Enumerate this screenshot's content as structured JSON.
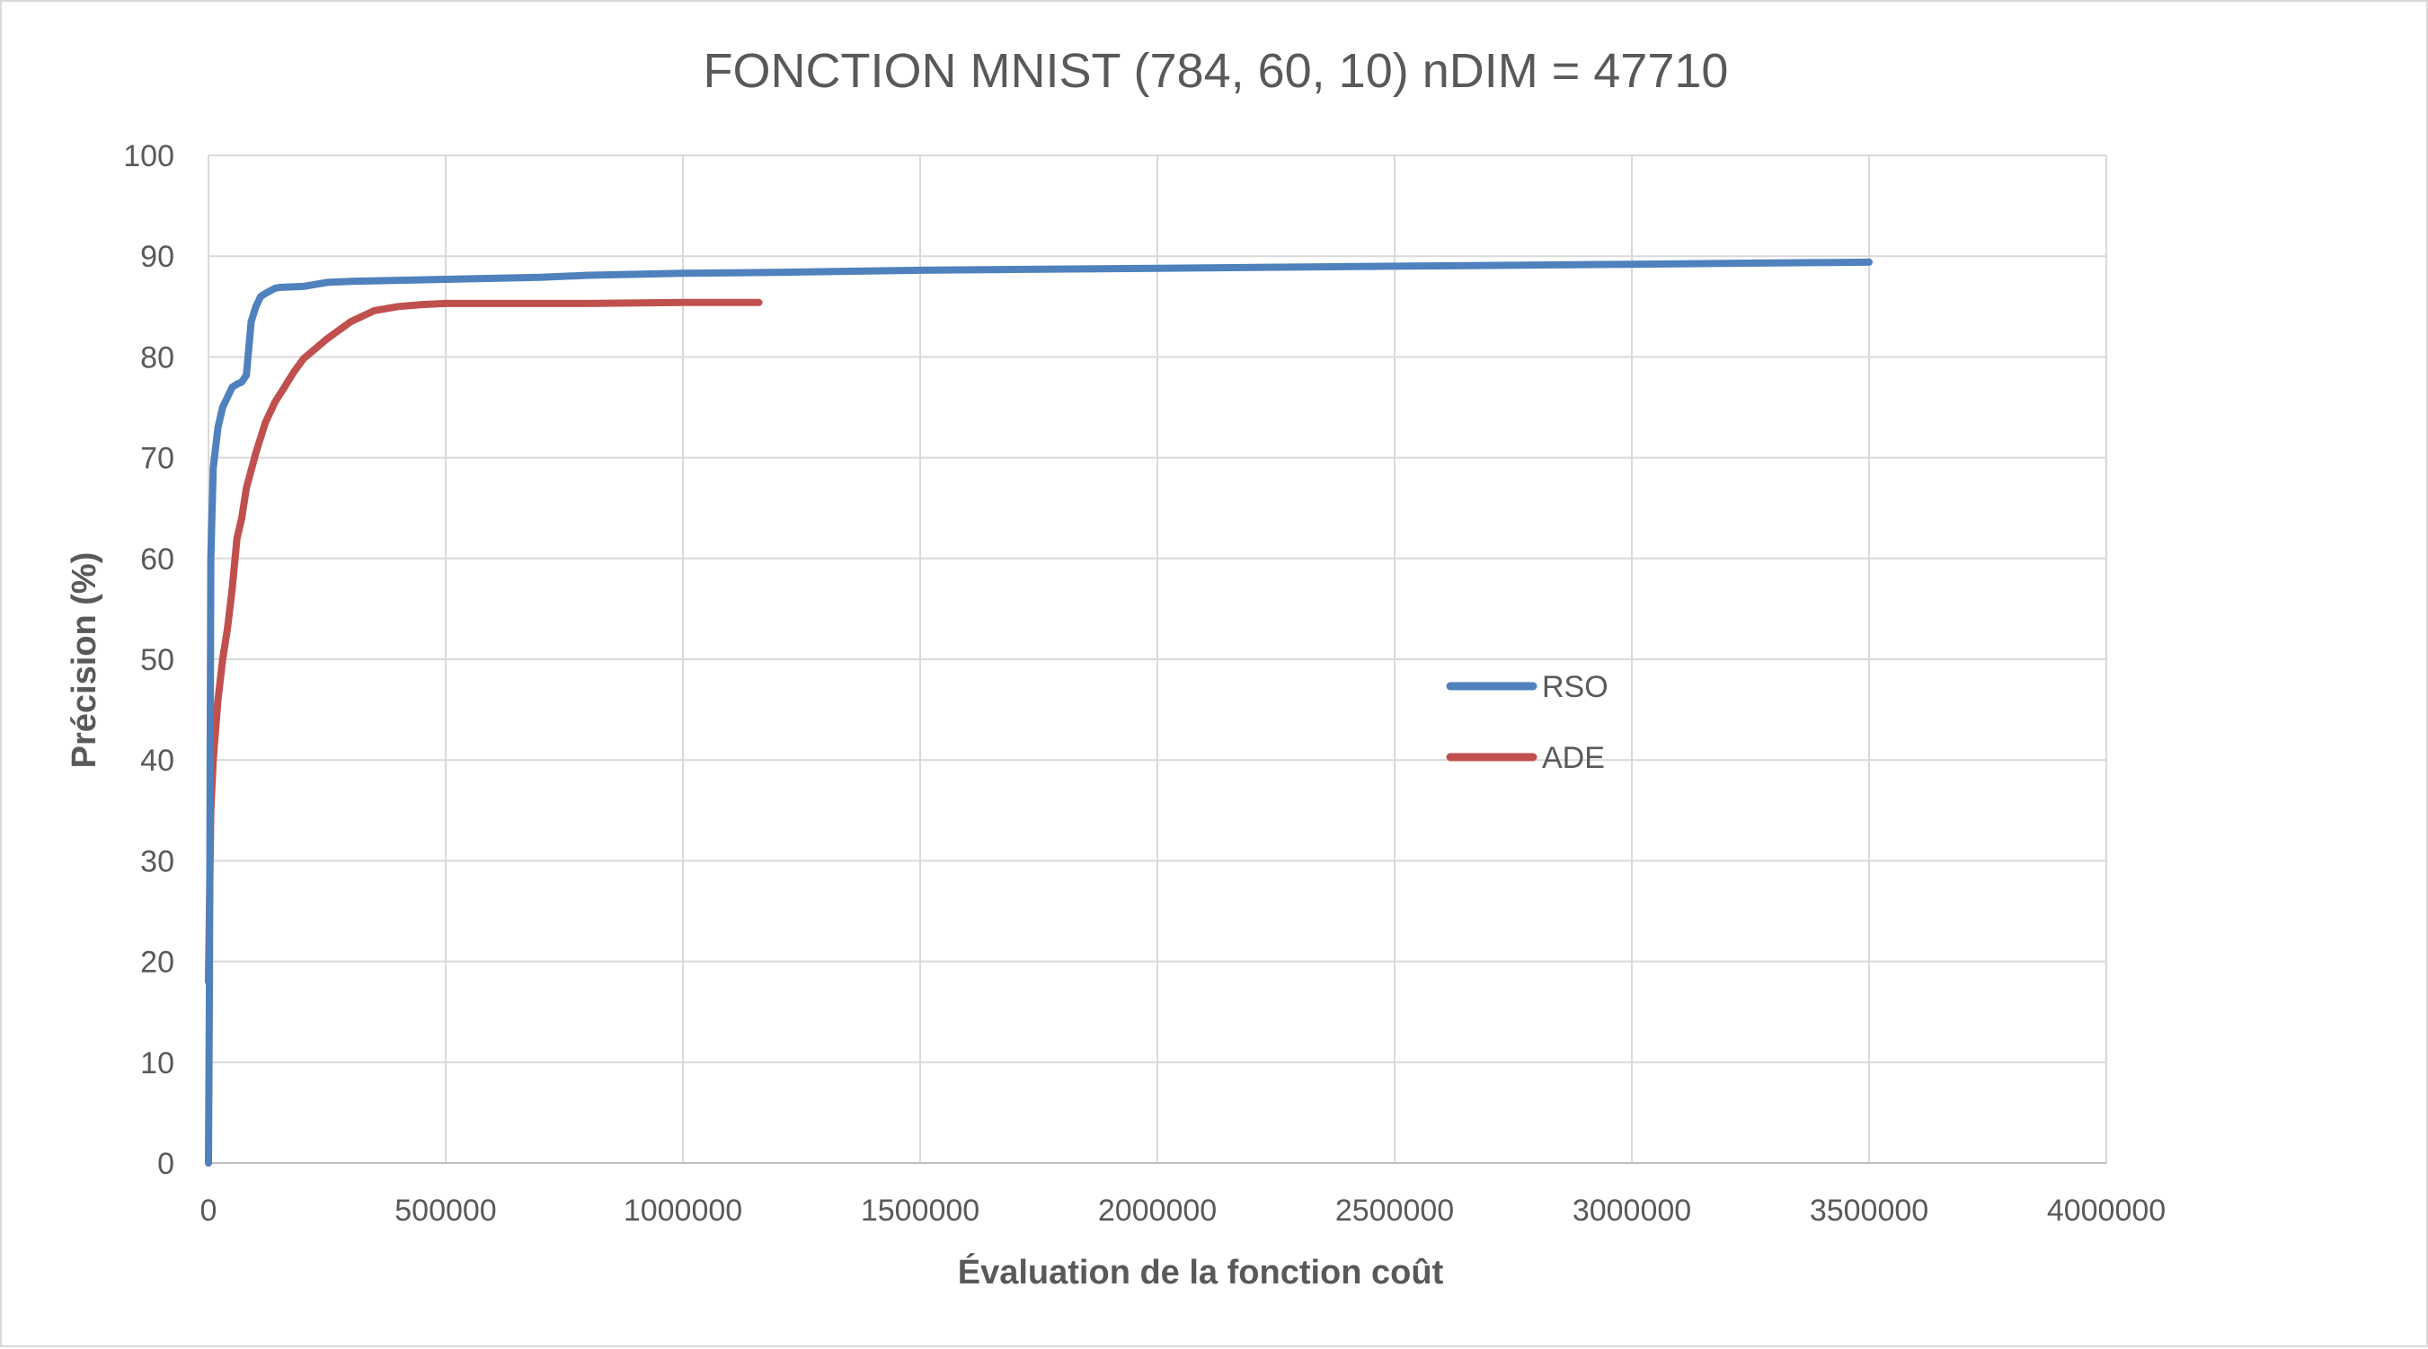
{
  "chart_data": {
    "type": "line",
    "title": "FONCTION MNIST (784, 60, 10) nDIM = 47710",
    "xlabel": "Évaluation de la fonction coût",
    "ylabel": "Précision (%)",
    "xlim": [
      0,
      4000000
    ],
    "ylim": [
      0,
      100
    ],
    "x_ticks": [
      0,
      500000,
      1000000,
      1500000,
      2000000,
      2500000,
      3000000,
      3500000,
      4000000
    ],
    "y_ticks": [
      0,
      10,
      20,
      30,
      40,
      50,
      60,
      70,
      80,
      90,
      100
    ],
    "grid": true,
    "legend_position": "right-center",
    "series": [
      {
        "name": "RSO",
        "color": "#4F81BD",
        "x": [
          0,
          2000,
          5000,
          10000,
          20000,
          30000,
          40000,
          50000,
          60000,
          70000,
          80000,
          90000,
          100000,
          110000,
          120000,
          140000,
          150000,
          200000,
          250000,
          300000,
          400000,
          500000,
          600000,
          700000,
          800000,
          900000,
          1000000,
          1200000,
          1500000,
          2000000,
          2500000,
          3000000,
          3500000
        ],
        "y": [
          0,
          18,
          60,
          69,
          73,
          75,
          76,
          77,
          77.3,
          77.5,
          78.2,
          83.5,
          85,
          86,
          86.3,
          86.8,
          86.9,
          87,
          87.4,
          87.5,
          87.6,
          87.7,
          87.8,
          87.9,
          88.1,
          88.2,
          88.3,
          88.4,
          88.6,
          88.8,
          89,
          89.2,
          89.4
        ]
      },
      {
        "name": "ADE",
        "color": "#C0504D",
        "x": [
          0,
          5000,
          10000,
          20000,
          30000,
          40000,
          50000,
          60000,
          70000,
          80000,
          100000,
          120000,
          140000,
          160000,
          180000,
          200000,
          250000,
          300000,
          350000,
          400000,
          450000,
          500000,
          600000,
          800000,
          1000000,
          1160000
        ],
        "y": [
          18,
          35,
          40,
          46,
          50,
          53,
          57,
          62,
          64,
          67,
          70.5,
          73.5,
          75.5,
          77,
          78.5,
          79.8,
          81.8,
          83.5,
          84.6,
          85,
          85.2,
          85.3,
          85.3,
          85.3,
          85.4,
          85.4
        ]
      }
    ]
  }
}
